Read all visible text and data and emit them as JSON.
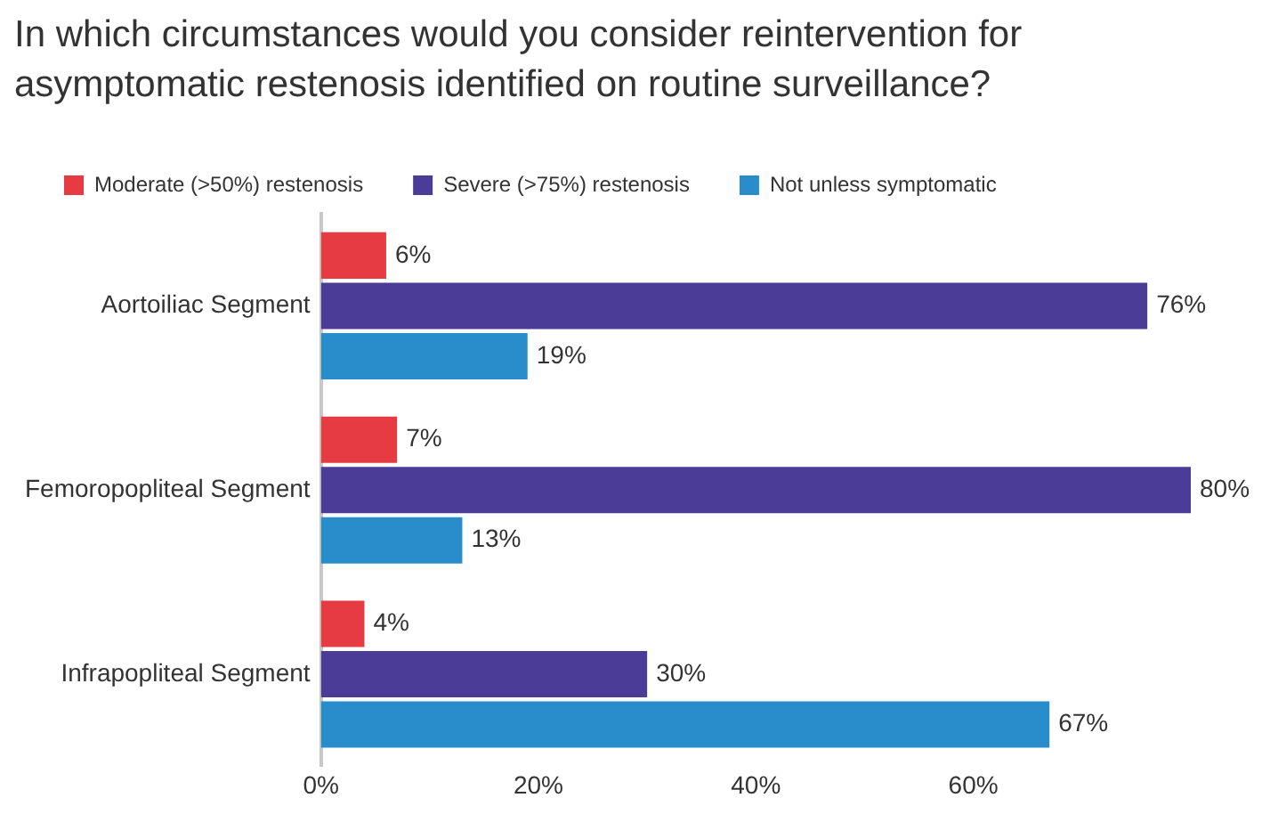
{
  "chart_data": {
    "type": "bar",
    "orientation": "horizontal",
    "title": "In which circumstances would you consider reintervention for asymptomatic restenosis identified on routine surveillance?",
    "categories": [
      "Aortoiliac Segment",
      "Femoropopliteal Segment",
      "Infrapopliteal Segment"
    ],
    "series": [
      {
        "name": "Moderate (>50%) restenosis",
        "color": "#e63b43",
        "values": [
          6,
          7,
          4
        ],
        "value_labels": [
          "6%",
          "7%",
          "4%"
        ]
      },
      {
        "name": "Severe (>75%) restenosis",
        "color": "#4b3d97",
        "values": [
          76,
          80,
          30
        ],
        "value_labels": [
          "76%",
          "80%",
          "30%"
        ]
      },
      {
        "name": "Not unless symptomatic",
        "color": "#2a8dcb",
        "values": [
          19,
          13,
          67
        ],
        "value_labels": [
          "19%",
          "13%",
          "67%"
        ]
      }
    ],
    "xlim": [
      0,
      80
    ],
    "xticks": [
      {
        "value": 0,
        "label": "0%"
      },
      {
        "value": 20,
        "label": "20%"
      },
      {
        "value": 40,
        "label": "40%"
      },
      {
        "value": 60,
        "label": "60%"
      }
    ],
    "legend": "top left"
  }
}
